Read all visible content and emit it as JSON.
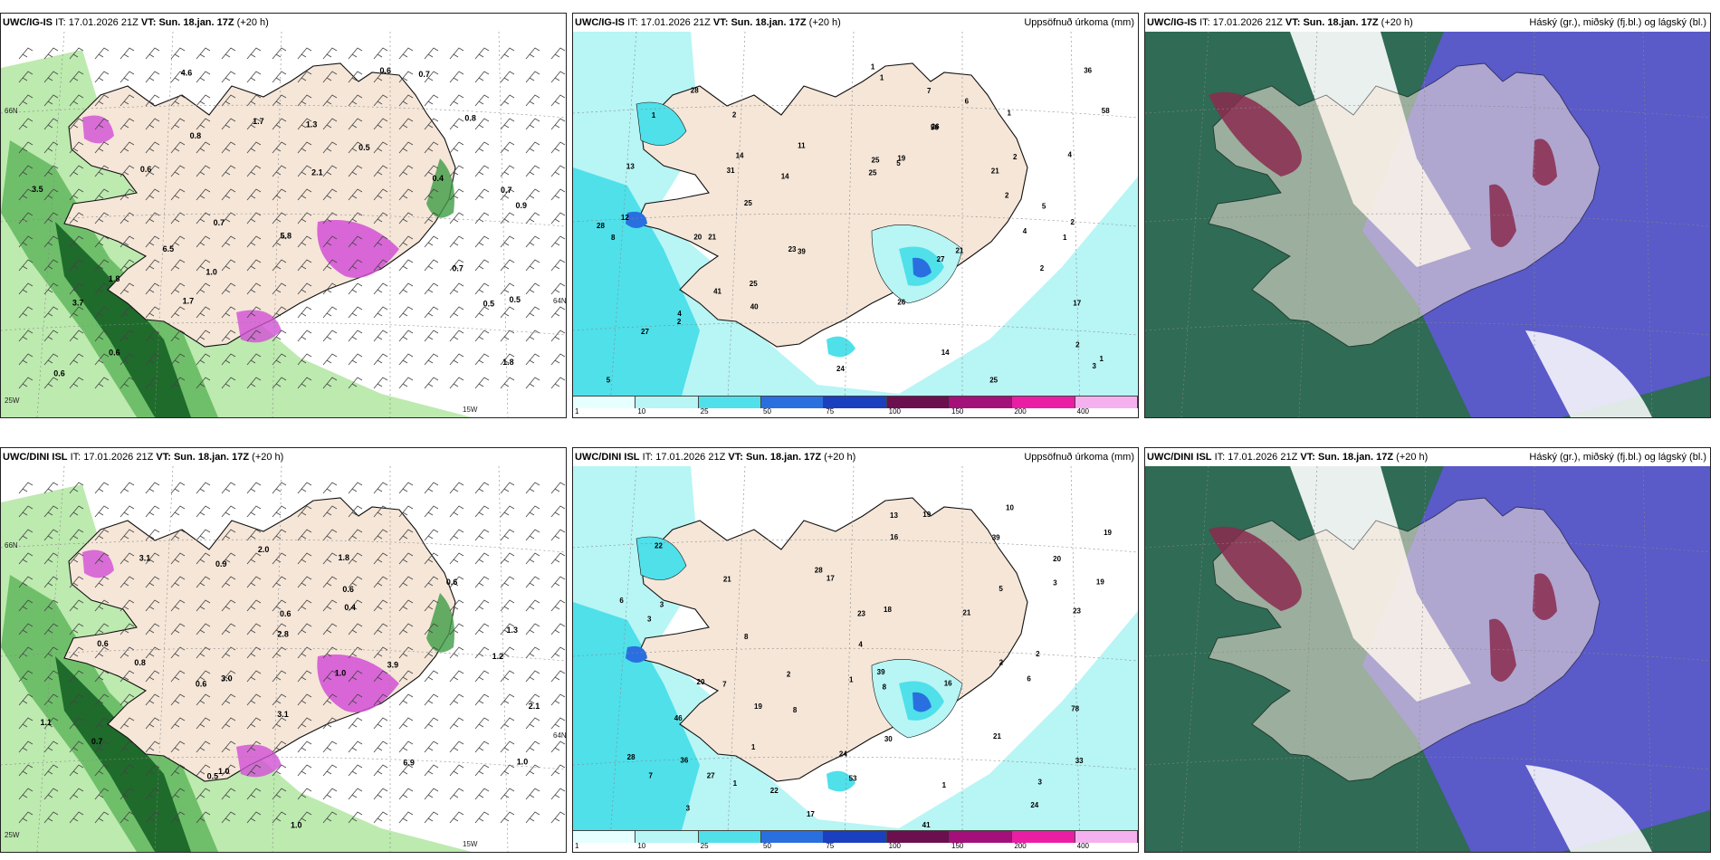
{
  "panels": [
    {
      "model": "UWC/IG-IS",
      "it_label": "IT:",
      "it": "17.01.2026 21Z",
      "vt_label": "VT:",
      "vt": "Sun. 18.jan. 17Z",
      "lead": "(+20 h)",
      "right_title": "",
      "type": "wind",
      "labels": [
        "0.8",
        "0.7",
        "0.5",
        "0.9",
        "0.7",
        "0.5",
        "1.0",
        "0.6",
        "0.5",
        "0.8",
        "0.6",
        "0.7",
        "0.4",
        "1.7",
        "3.7",
        "5.8",
        "6.5",
        "3.5",
        "4.6",
        "1.7",
        "1.8",
        "1.3",
        "0.6",
        "1.8",
        "2.1",
        "0.7",
        "0.6"
      ],
      "grid_labels": [
        "25W",
        "15W",
        "66N",
        "64N"
      ]
    },
    {
      "model": "UWC/IG-IS",
      "it_label": "IT:",
      "it": "17.01.2026 21Z",
      "vt_label": "VT:",
      "vt": "Sun. 18.jan. 17Z",
      "lead": "(+20 h)",
      "right_title": "Uppsöfnuð úrkoma (mm)",
      "type": "precip",
      "labels": [
        "1",
        "14",
        "27",
        "25",
        "27",
        "25",
        "26",
        "19",
        "25",
        "25",
        "28",
        "31",
        "28",
        "21",
        "21",
        "8",
        "5",
        "4",
        "6",
        "17",
        "25",
        "39",
        "2",
        "4",
        "11",
        "23",
        "36",
        "12",
        "5",
        "20",
        "21",
        "41",
        "58",
        "14",
        "7",
        "26",
        "40",
        "2",
        "1",
        "2",
        "1",
        "3",
        "5",
        "4",
        "14",
        "24",
        "56",
        "2",
        "13",
        "1",
        "2",
        "1",
        "2",
        "2",
        "1"
      ],
      "colorbar": {
        "ticks": [
          "1",
          "10",
          "25",
          "50",
          "75",
          "100",
          "150",
          "200",
          "400"
        ]
      }
    },
    {
      "model": "UWC/IG-IS",
      "it_label": "IT:",
      "it": "17.01.2026 21Z",
      "vt_label": "VT:",
      "vt": "Sun. 18.jan. 17Z",
      "lead": "(+20 h)",
      "right_title": "Háský (gr.), miðský (fj.bl.) og lágský (bl.)",
      "type": "cloud"
    },
    {
      "model": "UWC/DINI ISL",
      "it_label": "IT:",
      "it": "17.01.2026 21Z",
      "vt_label": "VT:",
      "vt": "Sun. 18.jan. 17Z",
      "lead": "(+20 h)",
      "right_title": "",
      "type": "wind",
      "labels": [
        "0.5",
        "0.6",
        "1.2",
        "1.3",
        "0.6",
        "3.9",
        "0.6",
        "3.0",
        "2.8",
        "6.9",
        "2.1",
        "1.0",
        "0.4",
        "2.0",
        "0.9",
        "1.8",
        "0.6",
        "0.7",
        "1.1",
        "1.0",
        "0.8",
        "3.1",
        "3.1",
        "1.0",
        "1.0",
        "0.6"
      ],
      "grid_labels": [
        "25W",
        "15W",
        "66N",
        "64N"
      ]
    },
    {
      "model": "UWC/DINI ISL",
      "it_label": "IT:",
      "it": "17.01.2026 21Z",
      "vt_label": "VT:",
      "vt": "Sun. 18.jan. 17Z",
      "lead": "(+20 h)",
      "right_title": "Uppsöfnuð úrkoma (mm)",
      "type": "precip",
      "labels": [
        "1",
        "13",
        "19",
        "18",
        "19",
        "19",
        "23",
        "24",
        "24",
        "17",
        "17",
        "23",
        "21",
        "22",
        "20",
        "41",
        "78",
        "28",
        "39",
        "36",
        "2",
        "5",
        "3",
        "8",
        "16",
        "8",
        "20",
        "30",
        "6",
        "8",
        "39",
        "46",
        "10",
        "19",
        "16",
        "21",
        "53",
        "28",
        "7",
        "1",
        "6",
        "3",
        "4",
        "21",
        "27",
        "22",
        "33",
        "2",
        "1",
        "3",
        "2",
        "1",
        "3",
        "3",
        "7"
      ],
      "colorbar": {
        "ticks": [
          "1",
          "10",
          "25",
          "50",
          "75",
          "100",
          "150",
          "200",
          "400"
        ]
      }
    },
    {
      "model": "UWC/DINI ISL",
      "it_label": "IT:",
      "it": "17.01.2026 21Z",
      "vt_label": "VT:",
      "vt": "Sun. 18.jan. 17Z",
      "lead": "(+20 h)",
      "right_title": "Háský (gr.), miðský (fj.bl.) og lágský (bl.)",
      "type": "cloud"
    }
  ],
  "colors": {
    "land": "#f5e6d8",
    "sea_precip": "#b8f5f5",
    "precip_mid": "#4fe0ea",
    "precip_high": "#2a6fe0",
    "green_light": "#b6e8a6",
    "green_dark": "#1f6b2c",
    "magenta": "#d24fd6",
    "cloud_high": "#2f6b55",
    "cloud_mid": "#5a5ac8",
    "cloud_low": "#8b2a4f"
  }
}
